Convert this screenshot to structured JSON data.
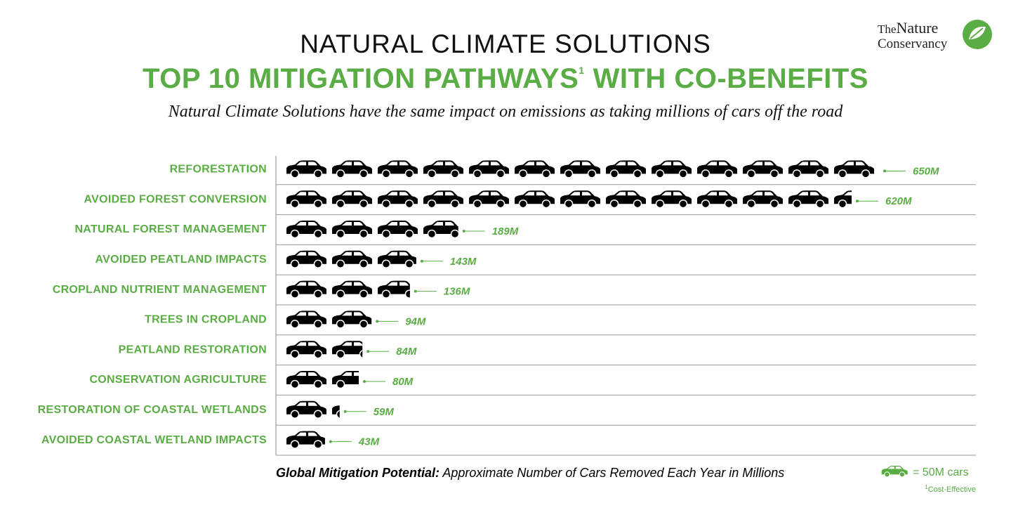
{
  "chart_data": {
    "type": "pictograph",
    "title": "NATURAL CLIMATE SOLUTIONS",
    "headline": "TOP 10 MITIGATION PATHWAYS",
    "headline_superscript": "1",
    "headline_end": "WITH CO-BENEFITS",
    "subtitle": "Natural Climate Solutions have the same impact on emissions as taking millions of cars off the road",
    "categories": [
      "REFORESTATION",
      "AVOIDED FOREST CONVERSION",
      "NATURAL FOREST MANAGEMENT",
      "AVOIDED PEATLAND IMPACTS",
      "CROPLAND NUTRIENT MANAGEMENT",
      "TREES IN CROPLAND",
      "PEATLAND RESTORATION",
      "CONSERVATION AGRICULTURE",
      "RESTORATION OF COASTAL WETLANDS",
      "AVOIDED COASTAL WETLAND IMPACTS"
    ],
    "values": [
      650,
      620,
      189,
      143,
      136,
      94,
      84,
      80,
      59,
      43
    ],
    "value_labels": [
      "650M",
      "620M",
      "189M",
      "143M",
      "136M",
      "94M",
      "84M",
      "80M",
      "59M",
      "43M"
    ],
    "color": "#000000",
    "label_color": "#5aac44",
    "icon_unit": 50,
    "legend_label": "= 50M cars",
    "xlabel_bold": "Global Mitigation Potential:",
    "xlabel": "Approximate Number of Cars Removed Each Year in Millions",
    "footnote_marker": "1",
    "footnote": "Cost-Effective"
  },
  "logo": {
    "line1a": "The",
    "line1b": "Nature",
    "line2": "Conservancy"
  }
}
